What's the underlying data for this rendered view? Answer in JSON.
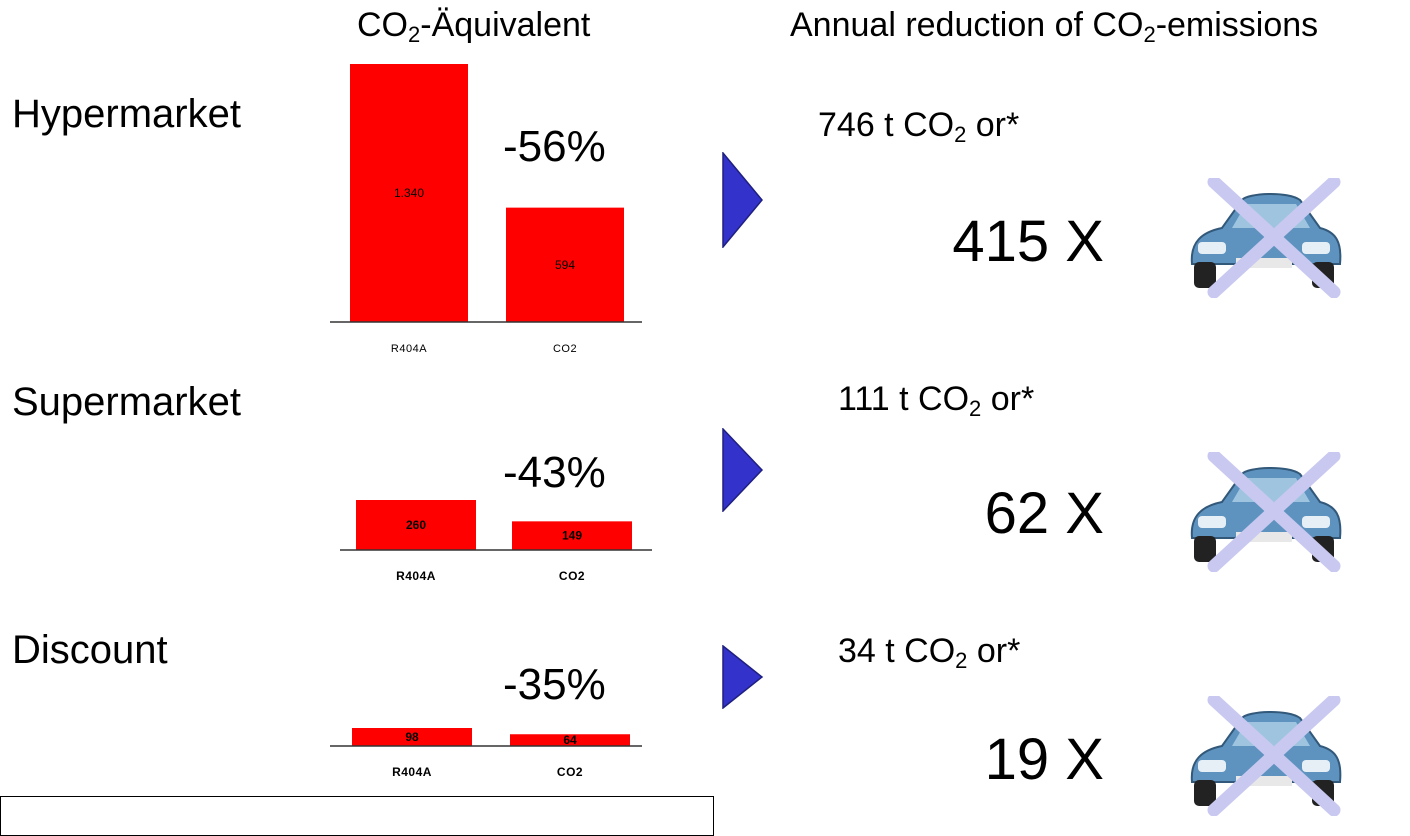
{
  "headers": {
    "left_prefix": "CO",
    "left_sub": "2",
    "left_suffix": "-Äquivalent",
    "right_prefix": "Annual reduction of CO",
    "right_sub": "2",
    "right_suffix": "-emissions"
  },
  "rows": [
    {
      "store": "Hypermarket",
      "reduction": "-56%",
      "tonnes_prefix": "746 t CO",
      "tonnes_sub": "2",
      "tonnes_suffix": " or*",
      "cars": "415 X"
    },
    {
      "store": "Supermarket",
      "reduction": "-43%",
      "tonnes_prefix": "111 t CO",
      "tonnes_sub": "2",
      "tonnes_suffix": " or*",
      "cars": "62 X"
    },
    {
      "store": "Discount",
      "reduction": "-35%",
      "tonnes_prefix": "34 t CO",
      "tonnes_sub": "2",
      "tonnes_suffix": " or*",
      "cars": "19 X"
    }
  ],
  "chart_data": [
    {
      "type": "bar",
      "categories": [
        "R404A",
        "CO2"
      ],
      "values": [
        1340,
        594
      ],
      "value_labels": [
        "1.340",
        "594"
      ],
      "ylim": [
        0,
        1340
      ],
      "color": "#ff0000"
    },
    {
      "type": "bar",
      "categories": [
        "R404A",
        "CO2"
      ],
      "values": [
        260,
        149
      ],
      "value_labels": [
        "260",
        "149"
      ],
      "ylim": [
        0,
        260
      ],
      "color": "#ff0000"
    },
    {
      "type": "bar",
      "categories": [
        "R404A",
        "CO2"
      ],
      "values": [
        98,
        64
      ],
      "value_labels": [
        "98",
        "64"
      ],
      "ylim": [
        0,
        98
      ],
      "color": "#ff0000"
    }
  ],
  "colors": {
    "bar": "#ff0000",
    "arrow": "#3333cc",
    "cross": "#c8c8f0"
  },
  "icons": {
    "arrow": "right-triangle-arrow-icon",
    "car": "crossed-out-car-icon"
  }
}
